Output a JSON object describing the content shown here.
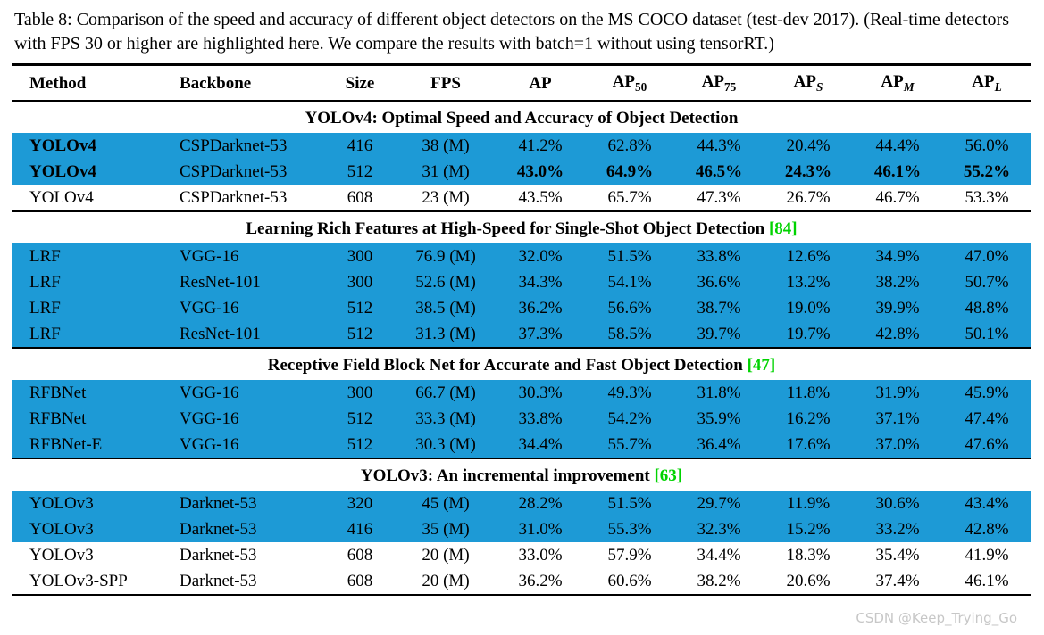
{
  "caption": "Table 8: Comparison of the speed and accuracy of different object detectors on the MS COCO dataset (test-dev 2017). (Real-time detectors with FPS 30 or higher are highlighted here. We compare the results with batch=1 without using tensorRT.)",
  "watermark": "CSDN @Keep_Trying_Go",
  "colors": {
    "highlight_row": "#1d9ad6",
    "citation_green": "#00d300"
  },
  "table": {
    "headers": [
      {
        "text": "Method",
        "sub": "",
        "sub_italic": false,
        "align": "left"
      },
      {
        "text": "Backbone",
        "sub": "",
        "sub_italic": false,
        "align": "left"
      },
      {
        "text": "Size",
        "sub": "",
        "sub_italic": false,
        "align": "center"
      },
      {
        "text": "FPS",
        "sub": "",
        "sub_italic": false,
        "align": "center"
      },
      {
        "text": "AP",
        "sub": "",
        "sub_italic": false,
        "align": "center"
      },
      {
        "text": "AP",
        "sub": "50",
        "sub_italic": false,
        "align": "center"
      },
      {
        "text": "AP",
        "sub": "75",
        "sub_italic": false,
        "align": "center"
      },
      {
        "text": "AP",
        "sub": "S",
        "sub_italic": true,
        "align": "center"
      },
      {
        "text": "AP",
        "sub": "M",
        "sub_italic": true,
        "align": "center"
      },
      {
        "text": "AP",
        "sub": "L",
        "sub_italic": true,
        "align": "center"
      }
    ],
    "sections": [
      {
        "title": "YOLOv4: Optimal Speed and Accuracy of Object Detection",
        "citation": "",
        "rows": [
          {
            "highlight": true,
            "bold": [
              0
            ],
            "cells": [
              "YOLOv4",
              "CSPDarknet-53",
              "416",
              "38 (M)",
              "41.2%",
              "62.8%",
              "44.3%",
              "20.4%",
              "44.4%",
              "56.0%"
            ]
          },
          {
            "highlight": true,
            "bold": [
              0,
              4,
              5,
              6,
              7,
              8,
              9
            ],
            "cells": [
              "YOLOv4",
              "CSPDarknet-53",
              "512",
              "31 (M)",
              "43.0%",
              "64.9%",
              "46.5%",
              "24.3%",
              "46.1%",
              "55.2%"
            ]
          },
          {
            "highlight": false,
            "bold": [],
            "cells": [
              "YOLOv4",
              "CSPDarknet-53",
              "608",
              "23 (M)",
              "43.5%",
              "65.7%",
              "47.3%",
              "26.7%",
              "46.7%",
              "53.3%"
            ]
          }
        ]
      },
      {
        "title": "Learning Rich Features at High-Speed for Single-Shot Object Detection",
        "citation": "[84]",
        "rows": [
          {
            "highlight": true,
            "bold": [],
            "cells": [
              "LRF",
              "VGG-16",
              "300",
              "76.9 (M)",
              "32.0%",
              "51.5%",
              "33.8%",
              "12.6%",
              "34.9%",
              "47.0%"
            ]
          },
          {
            "highlight": true,
            "bold": [],
            "cells": [
              "LRF",
              "ResNet-101",
              "300",
              "52.6 (M)",
              "34.3%",
              "54.1%",
              "36.6%",
              "13.2%",
              "38.2%",
              "50.7%"
            ]
          },
          {
            "highlight": true,
            "bold": [],
            "cells": [
              "LRF",
              "VGG-16",
              "512",
              "38.5 (M)",
              "36.2%",
              "56.6%",
              "38.7%",
              "19.0%",
              "39.9%",
              "48.8%"
            ]
          },
          {
            "highlight": true,
            "bold": [],
            "cells": [
              "LRF",
              "ResNet-101",
              "512",
              "31.3 (M)",
              "37.3%",
              "58.5%",
              "39.7%",
              "19.7%",
              "42.8%",
              "50.1%"
            ]
          }
        ]
      },
      {
        "title": "Receptive Field Block Net for Accurate and Fast Object Detection",
        "citation": "[47]",
        "rows": [
          {
            "highlight": true,
            "bold": [],
            "cells": [
              "RFBNet",
              "VGG-16",
              "300",
              "66.7 (M)",
              "30.3%",
              "49.3%",
              "31.8%",
              "11.8%",
              "31.9%",
              "45.9%"
            ]
          },
          {
            "highlight": true,
            "bold": [],
            "cells": [
              "RFBNet",
              "VGG-16",
              "512",
              "33.3 (M)",
              "33.8%",
              "54.2%",
              "35.9%",
              "16.2%",
              "37.1%",
              "47.4%"
            ]
          },
          {
            "highlight": true,
            "bold": [],
            "cells": [
              "RFBNet-E",
              "VGG-16",
              "512",
              "30.3 (M)",
              "34.4%",
              "55.7%",
              "36.4%",
              "17.6%",
              "37.0%",
              "47.6%"
            ]
          }
        ]
      },
      {
        "title": "YOLOv3: An incremental improvement",
        "citation": "[63]",
        "rows": [
          {
            "highlight": true,
            "bold": [],
            "cells": [
              "YOLOv3",
              "Darknet-53",
              "320",
              "45 (M)",
              "28.2%",
              "51.5%",
              "29.7%",
              "11.9%",
              "30.6%",
              "43.4%"
            ]
          },
          {
            "highlight": true,
            "bold": [],
            "cells": [
              "YOLOv3",
              "Darknet-53",
              "416",
              "35 (M)",
              "31.0%",
              "55.3%",
              "32.3%",
              "15.2%",
              "33.2%",
              "42.8%"
            ]
          },
          {
            "highlight": false,
            "bold": [],
            "cells": [
              "YOLOv3",
              "Darknet-53",
              "608",
              "20 (M)",
              "33.0%",
              "57.9%",
              "34.4%",
              "18.3%",
              "35.4%",
              "41.9%"
            ]
          },
          {
            "highlight": false,
            "bold": [],
            "cells": [
              "YOLOv3-SPP",
              "Darknet-53",
              "608",
              "20 (M)",
              "36.2%",
              "60.6%",
              "38.2%",
              "20.6%",
              "37.4%",
              "46.1%"
            ]
          }
        ]
      }
    ]
  }
}
